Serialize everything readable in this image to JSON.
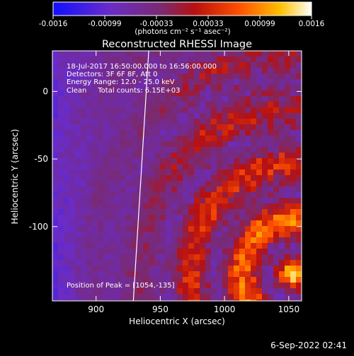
{
  "chart_data": {
    "type": "heatmap",
    "title": "Reconstructed RHESSI Image",
    "xlabel": "Heliocentric X (arcsec)",
    "ylabel": "Heliocentric Y (arcsec)",
    "x_ticks": [
      "900",
      "950",
      "1000",
      "1050"
    ],
    "x_tick_values": [
      900,
      950,
      1000,
      1050
    ],
    "y_ticks": [
      "0",
      "-50",
      "-100"
    ],
    "y_tick_values": [
      0,
      -50,
      -100
    ],
    "xlim": [
      866,
      1060
    ],
    "ylim": [
      -155,
      30
    ],
    "colorbar": {
      "ticks": [
        "-0.0016",
        "-0.00099",
        "-0.00033",
        "0.00033",
        "0.00099",
        "0.0016"
      ],
      "range": [
        -0.0016,
        0.0016
      ],
      "unit_label": "(photons cm⁻² s⁻¹ asec⁻²)",
      "colors": [
        "#1010ff",
        "#6a2cc8",
        "#7a2a70",
        "#b81010",
        "#ff5000",
        "#ffc000",
        "#ffffff"
      ]
    },
    "annotations": [
      "18-Jul-2017 16:50:00.000 to 16:56:00.000",
      "Detectors: 3F 6F 8F, Att 0",
      "Energy Range: 12.0 - 25.0 keV",
      "Clean     Total counts: 6.15E+03",
      "Position of Peak = [1054,-135]"
    ],
    "peak": [
      1054,
      -135
    ],
    "limb_line": [
      [
        941,
        30
      ],
      [
        929,
        -155
      ]
    ]
  },
  "footer": "6-Sep-2022 02:41"
}
